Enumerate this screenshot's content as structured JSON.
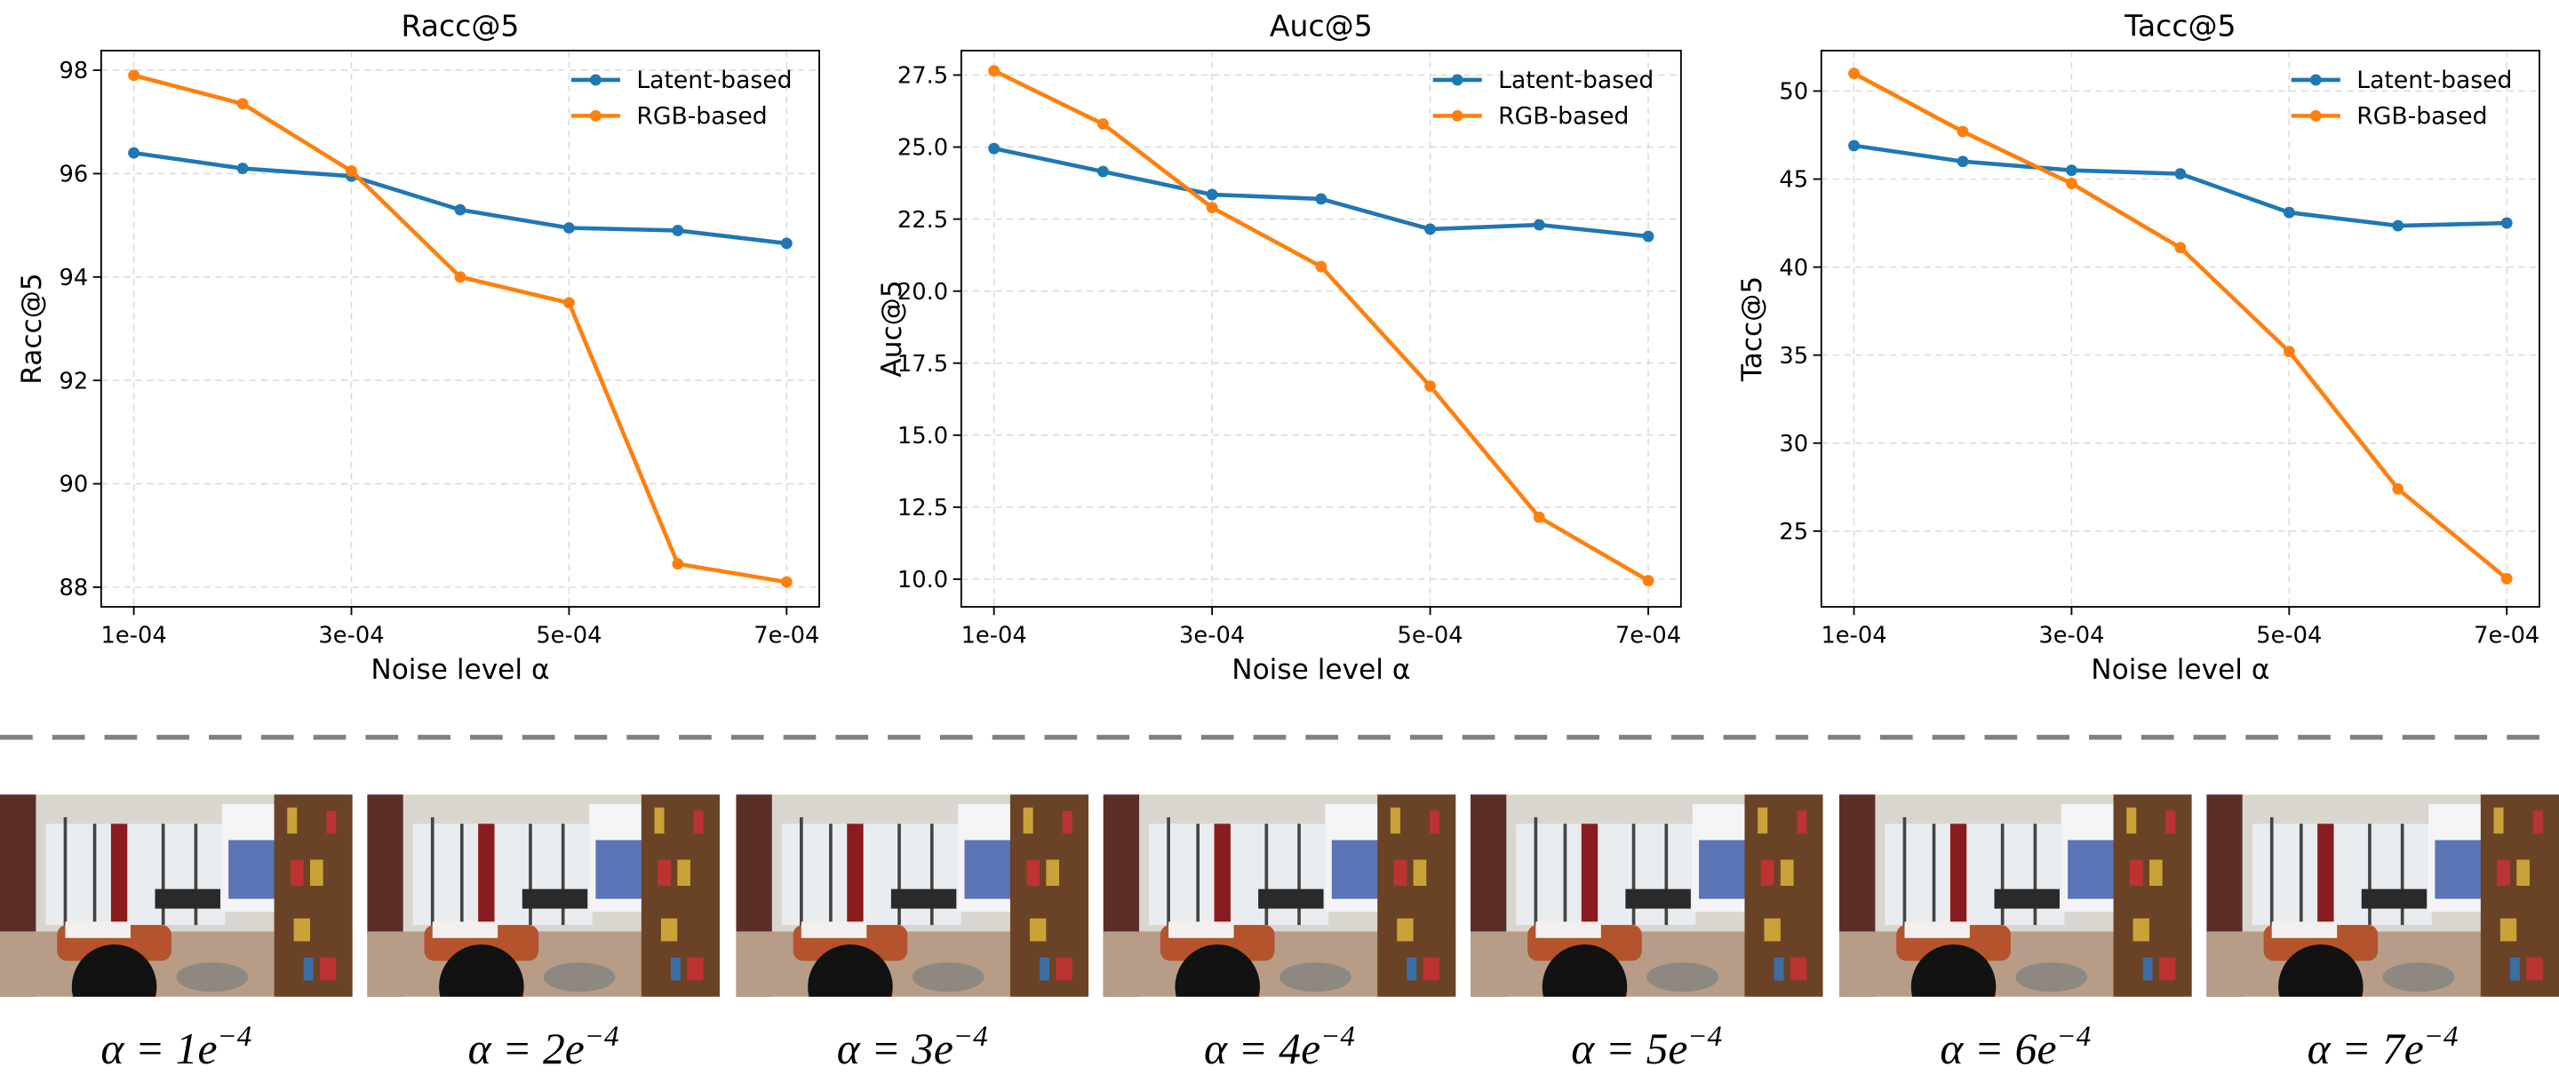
{
  "chart_data": [
    {
      "type": "line",
      "title": "Racc@5",
      "x_label": "Noise level α",
      "y_label": "Racc@5",
      "x": [
        0.0001,
        0.0002,
        0.0003,
        0.0004,
        0.0005,
        0.0006,
        0.0007
      ],
      "xlim": [
        7e-05,
        0.00073
      ],
      "xticks": [
        {
          "value": 0.0001,
          "label": "1e-04"
        },
        {
          "value": 0.0003,
          "label": "3e-04"
        },
        {
          "value": 0.0005,
          "label": "5e-04"
        },
        {
          "value": 0.0007,
          "label": "7e-04"
        }
      ],
      "ylim": [
        87.62,
        98.38
      ],
      "yticks": [
        88,
        90,
        92,
        94,
        96,
        98
      ],
      "grid": true,
      "legend": "upper right",
      "series": [
        {
          "name": "Latent-based",
          "color": "#1f77b4",
          "values": [
            96.4,
            96.1,
            95.95,
            95.3,
            94.95,
            94.9,
            94.65
          ]
        },
        {
          "name": "RGB-based",
          "color": "#ff7f0e",
          "values": [
            97.9,
            97.35,
            96.05,
            94.0,
            93.5,
            88.45,
            88.1
          ]
        }
      ]
    },
    {
      "type": "line",
      "title": "Auc@5",
      "x_label": "Noise level α",
      "y_label": "Auc@5",
      "x": [
        0.0001,
        0.0002,
        0.0003,
        0.0004,
        0.0005,
        0.0006,
        0.0007
      ],
      "xlim": [
        7e-05,
        0.00073
      ],
      "xticks": [
        {
          "value": 0.0001,
          "label": "1e-04"
        },
        {
          "value": 0.0003,
          "label": "3e-04"
        },
        {
          "value": 0.0005,
          "label": "5e-04"
        },
        {
          "value": 0.0007,
          "label": "7e-04"
        }
      ],
      "ylim": [
        9.04,
        28.35
      ],
      "yticks": [
        {
          "value": 10,
          "label": "10.0"
        },
        12.5,
        {
          "value": 15,
          "label": "15.0"
        },
        17.5,
        {
          "value": 20,
          "label": "20.0"
        },
        22.5,
        {
          "value": 25,
          "label": "25.0"
        },
        27.5
      ],
      "grid": true,
      "legend": "upper right",
      "series": [
        {
          "name": "Latent-based",
          "color": "#1f77b4",
          "values": [
            24.95,
            24.15,
            23.35,
            23.2,
            22.15,
            22.3,
            21.9
          ]
        },
        {
          "name": "RGB-based",
          "color": "#ff7f0e",
          "values": [
            27.65,
            25.8,
            22.9,
            20.85,
            16.7,
            12.15,
            9.95
          ]
        }
      ]
    },
    {
      "type": "line",
      "title": "Tacc@5",
      "x_label": "Noise level α",
      "y_label": "Tacc@5",
      "x": [
        0.0001,
        0.0002,
        0.0003,
        0.0004,
        0.0005,
        0.0006,
        0.0007
      ],
      "xlim": [
        7e-05,
        0.00073
      ],
      "xticks": [
        {
          "value": 0.0001,
          "label": "1e-04"
        },
        {
          "value": 0.0003,
          "label": "3e-04"
        },
        {
          "value": 0.0005,
          "label": "5e-04"
        },
        {
          "value": 0.0007,
          "label": "7e-04"
        }
      ],
      "ylim": [
        20.7,
        52.3
      ],
      "yticks": [
        25,
        30,
        35,
        40,
        45,
        50
      ],
      "grid": true,
      "legend": "upper right",
      "series": [
        {
          "name": "Latent-based",
          "color": "#1f77b4",
          "values": [
            46.9,
            46.0,
            45.5,
            45.3,
            43.1,
            42.35,
            42.5
          ]
        },
        {
          "name": "RGB-based",
          "color": "#ff7f0e",
          "values": [
            51.0,
            47.7,
            44.75,
            41.1,
            35.2,
            27.4,
            22.3
          ]
        }
      ]
    }
  ],
  "thumbnails": [
    {
      "base": "α = 1e",
      "exponent": "−4"
    },
    {
      "base": "α = 2e",
      "exponent": "−4"
    },
    {
      "base": "α = 3e",
      "exponent": "−4"
    },
    {
      "base": "α = 4e",
      "exponent": "−4"
    },
    {
      "base": "α = 5e",
      "exponent": "−4"
    },
    {
      "base": "α = 6e",
      "exponent": "−4"
    },
    {
      "base": "α = 7e",
      "exponent": "−4"
    }
  ]
}
